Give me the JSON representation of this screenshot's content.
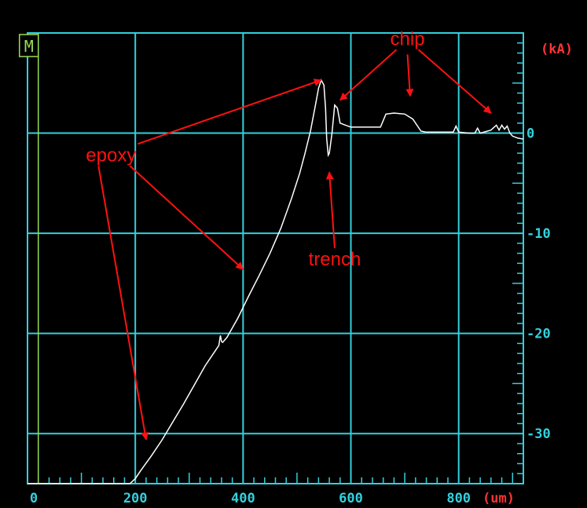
{
  "chart_data": {
    "type": "line",
    "x_unit": "(um)",
    "y_unit": "(kA)",
    "xlim": [
      0,
      920
    ],
    "ylim": [
      -35,
      10
    ],
    "x_ticks": [
      0,
      200,
      400,
      600,
      800
    ],
    "y_ticks": [
      0,
      -10,
      -20,
      -30
    ],
    "x_tick_labels": [
      "0",
      "200",
      "400",
      "600",
      "800"
    ],
    "y_tick_labels": [
      "0",
      "-10",
      "-20",
      "-30"
    ],
    "grid": true,
    "marker_label": "M",
    "marker_x": 20,
    "series": [
      {
        "color": "#ffffff",
        "x": [
          0,
          190,
          200,
          210,
          230,
          250,
          270,
          290,
          310,
          330,
          350,
          355,
          358,
          360,
          362,
          370,
          390,
          410,
          430,
          450,
          470,
          490,
          505,
          515,
          525,
          535,
          540,
          545,
          550,
          553,
          555,
          558,
          560,
          565,
          570,
          575,
          580,
          590,
          600,
          620,
          640,
          655,
          665,
          680,
          700,
          715,
          730,
          740,
          760,
          780,
          790,
          795,
          800,
          820,
          830,
          835,
          840,
          860,
          870,
          875,
          880,
          885,
          890,
          895,
          900,
          910,
          920
        ],
        "y": [
          -35,
          -35,
          -34.5,
          -33.7,
          -32.2,
          -30.6,
          -28.8,
          -27,
          -25.1,
          -23.2,
          -21.6,
          -21.2,
          -20.2,
          -20.8,
          -20.9,
          -20.4,
          -18.5,
          -16.3,
          -14.2,
          -12,
          -9.5,
          -6.5,
          -4,
          -2,
          0.2,
          3,
          4.5,
          5.3,
          4.8,
          2.5,
          -0.5,
          -2.2,
          -2,
          0,
          2.8,
          2.5,
          1,
          0.8,
          0.6,
          0.6,
          0.6,
          0.6,
          1.9,
          2,
          1.9,
          1.4,
          0.2,
          0.1,
          0.1,
          0.1,
          0.1,
          0.7,
          0.1,
          0,
          0,
          0.5,
          0,
          0.3,
          0.8,
          0.3,
          0.8,
          0.4,
          0.7,
          0,
          -0.3,
          -0.5,
          -0.6
        ]
      }
    ],
    "annotations": [
      {
        "text": "chip",
        "x": 705,
        "y": 8.8,
        "arrows_to": [
          [
            580,
            3.3
          ],
          [
            710,
            3.7
          ],
          [
            860,
            2
          ]
        ]
      },
      {
        "text": "epoxy",
        "x": 155,
        "y": -2.8,
        "arrows_to": [
          [
            545,
            5.3
          ],
          [
            400,
            -13.6
          ],
          [
            220,
            -30.6
          ]
        ]
      },
      {
        "text": "trench",
        "x": 570,
        "y": -13.2,
        "arrows_to": [
          [
            560,
            -3.9
          ]
        ]
      }
    ],
    "colors": {
      "background": "#000000",
      "grid": "#33d0dd",
      "axis_labels": "#33d0dd",
      "units": "#ff3333",
      "annotations": "#ff1111",
      "trace": "#ffffff",
      "marker": "#99dd55"
    }
  }
}
